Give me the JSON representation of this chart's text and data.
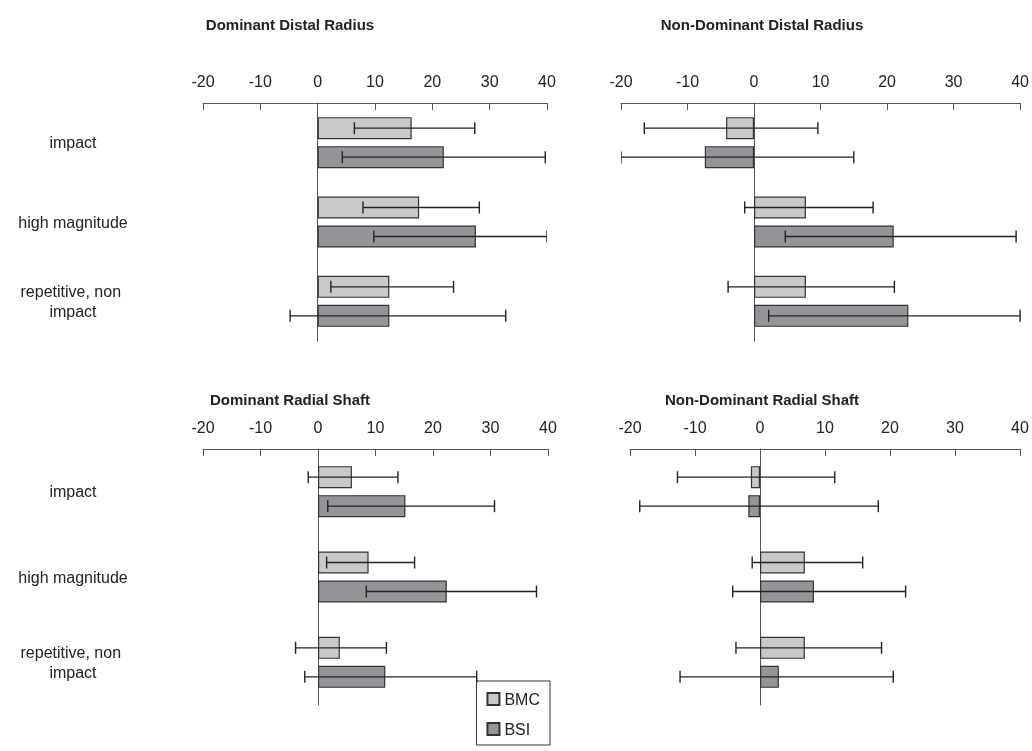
{
  "chart_data": [
    {
      "type": "bar",
      "orientation": "horizontal",
      "title": "Dominant Distal Radius",
      "categories": [
        "impact",
        "high magnitude",
        "repetitive, non impact"
      ],
      "xlim": [
        -20,
        40
      ],
      "xticks": [
        -20,
        -10,
        0,
        10,
        20,
        30,
        40
      ],
      "legend": false,
      "series": [
        {
          "color": "#c8c9ca",
          "values": [
            16.4,
            17.7,
            12.5
          ],
          "errors": [
            [
              6.4,
              27.4
            ],
            [
              7.9,
              28.2
            ],
            [
              2.3,
              23.7
            ]
          ]
        },
        {
          "color": "#939598",
          "values": [
            22.0,
            27.6,
            12.5
          ],
          "errors": [
            [
              4.3,
              39.7
            ],
            [
              9.8,
              40
            ],
            [
              -4.8,
              32.8
            ]
          ]
        }
      ]
    },
    {
      "type": "bar",
      "orientation": "horizontal",
      "title": "Non-Dominant Distal Radius",
      "categories": [
        "impact",
        "high magnitude",
        "repetitive, non impact"
      ],
      "tick_labels": "x",
      "xlim": [
        -20,
        40
      ],
      "xticks": [
        -20,
        -10,
        0,
        10,
        20,
        30,
        40
      ],
      "legend": false,
      "series": [
        {
          "color": "#c8c9ca",
          "values": [
            -4.2,
            7.8,
            7.8
          ],
          "errors": [
            [
              -16.5,
              9.6
            ],
            [
              -1.4,
              17.9
            ],
            [
              -3.9,
              21.1
            ]
          ]
        },
        {
          "color": "#939598",
          "values": [
            -7.4,
            21.0,
            23.2
          ],
          "errors": [
            [
              -20,
              15.0
            ],
            [
              4.7,
              39.4
            ],
            [
              2.2,
              40
            ]
          ]
        }
      ]
    },
    {
      "type": "bar",
      "orientation": "horizontal",
      "title": "Dominant Radial Shaft",
      "categories": [
        "impact",
        "high magnitude",
        "repetitive, non impact"
      ],
      "xlim": [
        -20,
        40
      ],
      "xticks": [
        -20,
        -10,
        0,
        10,
        20,
        30,
        40
      ],
      "legend": "bottom right",
      "series": [
        {
          "name": "BMC",
          "color": "#c8c9ca",
          "values": [
            5.9,
            8.8,
            3.8
          ],
          "errors": [
            [
              -1.7,
              13.9
            ],
            [
              1.5,
              16.8
            ],
            [
              -3.9,
              11.9
            ]
          ]
        },
        {
          "name": "BSI",
          "color": "#939598",
          "values": [
            15.2,
            22.4,
            11.7
          ],
          "errors": [
            [
              1.7,
              30.7
            ],
            [
              8.4,
              38.0
            ],
            [
              -2.3,
              27.6
            ]
          ]
        }
      ]
    },
    {
      "type": "bar",
      "orientation": "horizontal",
      "title": "Non-Dominant Radial Shaft",
      "categories": [
        "impact",
        "high magnitude",
        "repetitive, non impact"
      ],
      "tick_labels": "x",
      "xlim": [
        -20,
        40
      ],
      "xticks": [
        -20,
        -10,
        0,
        10,
        20,
        30,
        40
      ],
      "legend": false,
      "series": [
        {
          "color": "#c8c9ca",
          "values": [
            -1.4,
            6.9,
            6.9
          ],
          "errors": [
            [
              -12.7,
              11.5
            ],
            [
              -1.2,
              15.8
            ],
            [
              -3.7,
              18.7
            ]
          ]
        },
        {
          "color": "#939598",
          "values": [
            -1.8,
            8.3,
            2.9
          ],
          "errors": [
            [
              -18.5,
              18.2
            ],
            [
              -4.2,
              22.4
            ],
            [
              -12.3,
              20.5
            ]
          ]
        }
      ]
    }
  ]
}
